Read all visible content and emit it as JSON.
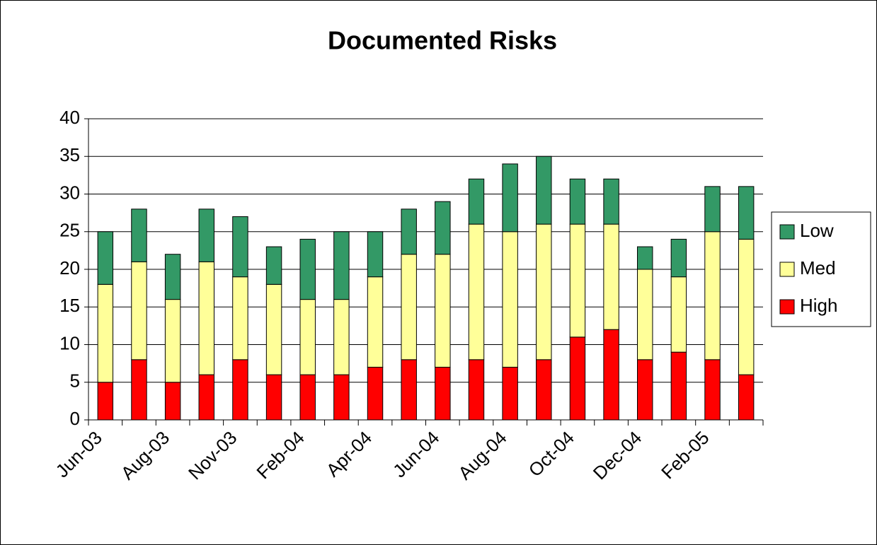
{
  "chart_data": {
    "type": "stacked_bar",
    "title": "Documented Risks",
    "categories": [
      "Jun-03",
      null,
      "Aug-03",
      null,
      "Nov-03",
      null,
      "Feb-04",
      null,
      "Apr-04",
      null,
      "Jun-04",
      null,
      "Aug-04",
      null,
      "Oct-04",
      null,
      "Dec-04",
      null,
      "Feb-05",
      null
    ],
    "series": [
      {
        "name": "High",
        "color": "#ff0000",
        "values": [
          5,
          8,
          5,
          6,
          8,
          6,
          6,
          6,
          7,
          8,
          7,
          8,
          7,
          8,
          11,
          12,
          8,
          9,
          8,
          6
        ]
      },
      {
        "name": "Med",
        "color": "#ffff99",
        "values": [
          13,
          13,
          11,
          15,
          11,
          12,
          10,
          10,
          12,
          14,
          15,
          18,
          18,
          18,
          15,
          14,
          12,
          10,
          17,
          18
        ]
      },
      {
        "name": "Low",
        "color": "#339966",
        "values": [
          7,
          7,
          6,
          7,
          8,
          5,
          8,
          9,
          6,
          6,
          7,
          6,
          9,
          9,
          6,
          6,
          3,
          5,
          6,
          7
        ]
      }
    ],
    "ylim": [
      0,
      40
    ],
    "yticks": [
      0,
      5,
      10,
      15,
      20,
      25,
      30,
      35,
      40
    ],
    "grid": true,
    "legend": "right"
  }
}
